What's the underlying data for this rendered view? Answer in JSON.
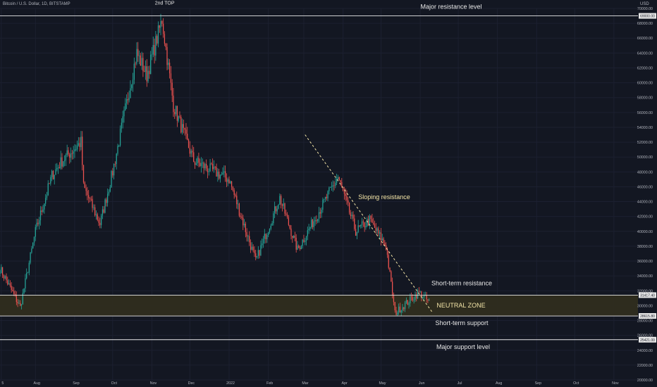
{
  "header": {
    "symbol": "Bitcoin / U.S. Dollar, 1D, BITSTAMP",
    "currency": "USD"
  },
  "colors": {
    "background": "#131722",
    "up": "#26a69a",
    "down": "#ef5350",
    "zone": "#2f2d1f",
    "annotation": "#f5e6a8",
    "line": "#e9e9e9"
  },
  "chart_data": {
    "type": "candlestick",
    "title": "",
    "ylim": [
      20000,
      70000
    ],
    "y_ticks": [
      20000,
      22000,
      24000,
      26000,
      28000,
      30000,
      32000,
      34000,
      36000,
      38000,
      40000,
      42000,
      44000,
      46000,
      48000,
      50000,
      52000,
      54000,
      56000,
      58000,
      60000,
      62000,
      64000,
      66000,
      68000,
      70000
    ],
    "x_ticks": [
      "5",
      "Aug",
      "Sep",
      "Oct",
      "Nov",
      "Dec",
      "2022",
      "Feb",
      "Mar",
      "Apr",
      "May",
      "Jun",
      "Jul",
      "Aug",
      "Sep",
      "Oct",
      "Nov"
    ],
    "x_tick_dates": [
      "2021-07-05",
      "2021-08-01",
      "2021-09-01",
      "2021-10-01",
      "2021-11-01",
      "2021-12-01",
      "2022-01-01",
      "2022-02-01",
      "2022-03-01",
      "2022-04-01",
      "2022-05-01",
      "2022-06-01",
      "2022-07-01",
      "2022-08-01",
      "2022-09-01",
      "2022-10-01",
      "2022-11-01"
    ],
    "x_range": [
      "2021-07-04",
      "2022-11-20"
    ],
    "price_path": [
      [
        "2021-07-04",
        35000
      ],
      [
        "2021-07-20",
        29800
      ],
      [
        "2021-08-01",
        40000
      ],
      [
        "2021-08-14",
        47500
      ],
      [
        "2021-08-22",
        49500
      ],
      [
        "2021-09-06",
        52000
      ],
      [
        "2021-09-08",
        46000
      ],
      [
        "2021-09-21",
        41000
      ],
      [
        "2021-10-01",
        48000
      ],
      [
        "2021-10-20",
        64000
      ],
      [
        "2021-10-28",
        61000
      ],
      [
        "2021-11-09",
        68500
      ],
      [
        "2021-11-18",
        57000
      ],
      [
        "2021-12-04",
        49500
      ],
      [
        "2021-12-15",
        48500
      ],
      [
        "2022-01-01",
        47000
      ],
      [
        "2022-01-22",
        36000
      ],
      [
        "2022-02-10",
        44500
      ],
      [
        "2022-02-24",
        37500
      ],
      [
        "2022-03-28",
        47300
      ],
      [
        "2022-04-11",
        40000
      ],
      [
        "2022-04-22",
        41500
      ],
      [
        "2022-05-05",
        38000
      ],
      [
        "2022-05-12",
        29000
      ],
      [
        "2022-05-31",
        31800
      ],
      [
        "2022-06-09",
        30300
      ]
    ],
    "levels": [
      {
        "name": "Major resistance level",
        "price": 69000
      },
      {
        "name": "Short-term resistance",
        "price": 31417.4
      },
      {
        "name": "Short-term support",
        "price": 28615.8
      },
      {
        "name": "Major support level",
        "price": 25421.0
      }
    ],
    "level_tags": [
      "69000.00",
      "31417.40",
      "28615.80",
      "25421.00"
    ],
    "zone": {
      "label": "NEUTRAL ZONE",
      "from": 28615.8,
      "to": 31417.4
    },
    "trendline": {
      "label": "Sloping resistance",
      "points": [
        [
          "2022-03-02",
          53000
        ],
        [
          "2022-06-11",
          29000
        ]
      ]
    },
    "annotations": [
      {
        "text": "2nd TOP",
        "date": "2021-11-10",
        "price": 70800
      }
    ]
  }
}
